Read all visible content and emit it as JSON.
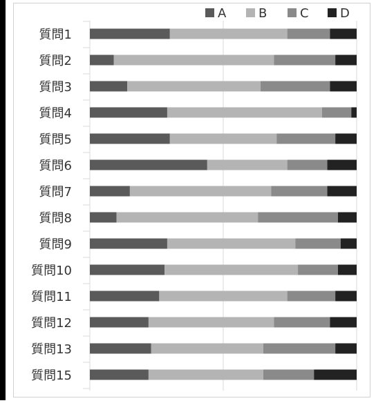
{
  "chart_data": {
    "type": "bar",
    "orientation": "horizontal",
    "stacked": true,
    "normalized": true,
    "categories": [
      "質問1",
      "質問2",
      "質問3",
      "質問4",
      "質問5",
      "質問6",
      "質問7",
      "質問8",
      "質問9",
      "質問10",
      "質問11",
      "質問12",
      "質問13",
      "質問15"
    ],
    "series": [
      {
        "name": "A",
        "color": "#5a5a5a",
        "values": [
          30,
          9,
          14,
          29,
          30,
          44,
          15,
          10,
          29,
          28,
          26,
          22,
          23,
          22
        ]
      },
      {
        "name": "B",
        "color": "#b4b4b4",
        "values": [
          44,
          60,
          50,
          58,
          40,
          30,
          53,
          53,
          48,
          50,
          48,
          47,
          42,
          43
        ]
      },
      {
        "name": "C",
        "color": "#8a8a8a",
        "values": [
          16,
          23,
          26,
          11,
          22,
          15,
          21,
          30,
          17,
          15,
          18,
          21,
          27,
          19
        ]
      },
      {
        "name": "D",
        "color": "#222222",
        "values": [
          10,
          8,
          10,
          2,
          8,
          11,
          11,
          7,
          6,
          7,
          8,
          10,
          8,
          16
        ]
      }
    ],
    "xlim": [
      0,
      100
    ],
    "grid": true,
    "legend": "top-right"
  }
}
